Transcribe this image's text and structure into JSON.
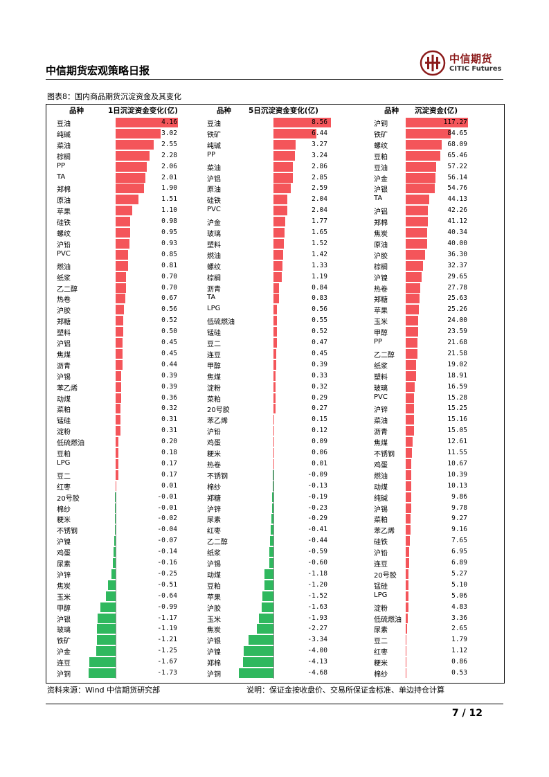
{
  "header": {
    "title": "中信期货宏观策略日报"
  },
  "logo": {
    "cn": "中信期货",
    "en": "CITIC Futures"
  },
  "figure": {
    "title": "图表8：国内商品期货沉淀资金及其变化"
  },
  "colors": {
    "positive": "#f4555a",
    "negative": "#2fb85e"
  },
  "chart_data": [
    {
      "type": "bar",
      "name_header": "品种",
      "value_header": "1日沉淀资金变化(亿)",
      "categories": [
        "豆油",
        "纯碱",
        "菜油",
        "棕榈",
        "PP",
        "TA",
        "郑棉",
        "原油",
        "苹果",
        "硅铁",
        "螺纹",
        "沪铅",
        "PVC",
        "燃油",
        "纸浆",
        "乙二醇",
        "热卷",
        "沪胶",
        "郑糖",
        "塑料",
        "沪铝",
        "焦煤",
        "沥青",
        "沪锡",
        "苯乙烯",
        "动煤",
        "菜粕",
        "锰硅",
        "淀粉",
        "低硫燃油",
        "豆粕",
        "LPG",
        "豆二",
        "红枣",
        "20号胶",
        "棉纱",
        "粳米",
        "不锈钢",
        "沪镍",
        "鸡蛋",
        "尿素",
        "沪锌",
        "焦炭",
        "玉米",
        "甲醇",
        "沪银",
        "玻璃",
        "铁矿",
        "沪金",
        "连豆",
        "沪铜"
      ],
      "values": [
        4.16,
        3.02,
        2.55,
        2.28,
        2.06,
        2.01,
        1.9,
        1.51,
        1.1,
        0.98,
        0.95,
        0.93,
        0.85,
        0.81,
        0.7,
        0.7,
        0.67,
        0.56,
        0.52,
        0.5,
        0.45,
        0.45,
        0.44,
        0.39,
        0.39,
        0.36,
        0.32,
        0.31,
        0.31,
        0.2,
        0.18,
        0.17,
        0.17,
        0.01,
        -0.01,
        -0.01,
        -0.02,
        -0.04,
        -0.07,
        -0.14,
        -0.16,
        -0.25,
        -0.51,
        -0.64,
        -0.99,
        -1.17,
        -1.19,
        -1.21,
        -1.25,
        -1.67,
        -1.73
      ],
      "labels": [
        "4.16",
        "3.02",
        "2.55",
        "2.28",
        "2.06",
        "2.01",
        "1.90",
        "1.51",
        "1.10",
        "0.98",
        "0.95",
        "0.93",
        "0.85",
        "0.81",
        "0.70",
        "0.70",
        "0.67",
        "0.56",
        "0.52",
        "0.50",
        "0.45",
        "0.45",
        "0.44",
        "0.39",
        "0.39",
        "0.36",
        "0.32",
        "0.31",
        "0.31",
        "0.20",
        "0.18",
        "0.17",
        "0.17",
        "0.01",
        "-0.01",
        "-0.01",
        "-0.02",
        "-0.04",
        "-0.07",
        "-0.14",
        "-0.16",
        "-0.25",
        "-0.51",
        "-0.64",
        "-0.99",
        "-1.17",
        "-1.19",
        "-1.21",
        "-1.25",
        "-1.67",
        "-1.73"
      ],
      "xlim": [
        -1.73,
        4.16
      ]
    },
    {
      "type": "bar",
      "name_header": "品种",
      "value_header": "5日沉淀资金变化(亿)",
      "categories": [
        "豆油",
        "铁矿",
        "纯碱",
        "PP",
        "菜油",
        "沪铝",
        "原油",
        "硅铁",
        "PVC",
        "沪金",
        "玻璃",
        "塑料",
        "燃油",
        "螺纹",
        "棕榈",
        "沥青",
        "TA",
        "LPG",
        "低硫燃油",
        "锰硅",
        "豆二",
        "连豆",
        "甲醇",
        "焦煤",
        "淀粉",
        "菜粕",
        "20号胶",
        "苯乙烯",
        "沪铅",
        "鸡蛋",
        "粳米",
        "热卷",
        "不锈钢",
        "棉纱",
        "郑糖",
        "沪锌",
        "尿素",
        "红枣",
        "乙二醇",
        "纸浆",
        "沪锡",
        "动煤",
        "豆粕",
        "苹果",
        "沪胶",
        "玉米",
        "焦炭",
        "沪银",
        "沪镍",
        "郑棉",
        "沪铜"
      ],
      "values": [
        8.56,
        6.44,
        3.27,
        3.24,
        2.86,
        2.85,
        2.59,
        2.04,
        2.04,
        1.77,
        1.65,
        1.52,
        1.42,
        1.33,
        1.19,
        0.84,
        0.83,
        0.56,
        0.55,
        0.52,
        0.47,
        0.45,
        0.39,
        0.33,
        0.32,
        0.29,
        0.27,
        0.15,
        0.12,
        0.09,
        0.06,
        0.01,
        -0.09,
        -0.13,
        -0.19,
        -0.23,
        -0.29,
        -0.41,
        -0.44,
        -0.59,
        -0.6,
        -1.18,
        -1.2,
        -1.52,
        -1.63,
        -1.93,
        -2.27,
        -3.34,
        -4.0,
        -4.13,
        -4.68
      ],
      "labels": [
        "8.56",
        "6.44",
        "3.27",
        "3.24",
        "2.86",
        "2.85",
        "2.59",
        "2.04",
        "2.04",
        "1.77",
        "1.65",
        "1.52",
        "1.42",
        "1.33",
        "1.19",
        "0.84",
        "0.83",
        "0.56",
        "0.55",
        "0.52",
        "0.47",
        "0.45",
        "0.39",
        "0.33",
        "0.32",
        "0.29",
        "0.27",
        "0.15",
        "0.12",
        "0.09",
        "0.06",
        "0.01",
        "-0.09",
        "-0.13",
        "-0.19",
        "-0.23",
        "-0.29",
        "-0.41",
        "-0.44",
        "-0.59",
        "-0.60",
        "-1.18",
        "-1.20",
        "-1.52",
        "-1.63",
        "-1.93",
        "-2.27",
        "-3.34",
        "-4.00",
        "-4.13",
        "-4.68"
      ],
      "xlim": [
        -4.68,
        8.56
      ]
    },
    {
      "type": "bar",
      "name_header": "品种",
      "value_header": "沉淀资金(亿)",
      "categories": [
        "沪铜",
        "铁矿",
        "螺纹",
        "豆粕",
        "豆油",
        "沪金",
        "沪银",
        "TA",
        "沪铝",
        "郑棉",
        "焦炭",
        "原油",
        "沪胶",
        "棕榈",
        "沪镍",
        "热卷",
        "郑糖",
        "苹果",
        "玉米",
        "甲醇",
        "PP",
        "乙二醇",
        "纸浆",
        "塑料",
        "玻璃",
        "PVC",
        "沪锌",
        "菜油",
        "沥青",
        "焦煤",
        "不锈钢",
        "鸡蛋",
        "燃油",
        "动煤",
        "纯碱",
        "沪锡",
        "菜粕",
        "苯乙烯",
        "硅铁",
        "沪铅",
        "连豆",
        "20号胶",
        "锰硅",
        "LPG",
        "淀粉",
        "低硫燃油",
        "尿素",
        "豆二",
        "红枣",
        "粳米",
        "棉纱"
      ],
      "values": [
        117.27,
        84.65,
        68.09,
        65.46,
        57.22,
        56.14,
        54.76,
        44.13,
        42.26,
        41.12,
        40.34,
        40.0,
        36.3,
        32.37,
        29.65,
        27.78,
        25.63,
        25.26,
        24.0,
        23.59,
        21.68,
        21.58,
        19.02,
        18.91,
        16.59,
        15.28,
        15.25,
        15.16,
        15.05,
        12.61,
        11.55,
        10.67,
        10.39,
        10.13,
        9.86,
        9.78,
        9.27,
        9.16,
        7.65,
        6.95,
        6.89,
        5.27,
        5.1,
        5.06,
        4.83,
        3.36,
        2.65,
        1.79,
        1.12,
        0.86,
        0.53
      ],
      "labels": [
        "117.27",
        "84.65",
        "68.09",
        "65.46",
        "57.22",
        "56.14",
        "54.76",
        "44.13",
        "42.26",
        "41.12",
        "40.34",
        "40.00",
        "36.30",
        "32.37",
        "29.65",
        "27.78",
        "25.63",
        "25.26",
        "24.00",
        "23.59",
        "21.68",
        "21.58",
        "19.02",
        "18.91",
        "16.59",
        "15.28",
        "15.25",
        "15.16",
        "15.05",
        "12.61",
        "11.55",
        "10.67",
        "10.39",
        "10.13",
        "9.86",
        "9.78",
        "9.27",
        "9.16",
        "7.65",
        "6.95",
        "6.89",
        "5.27",
        "5.10",
        "5.06",
        "4.83",
        "3.36",
        "2.65",
        "1.79",
        "1.12",
        "0.86",
        "0.53"
      ],
      "xlim": [
        0,
        117.27
      ]
    }
  ],
  "footer": {
    "source": "资料来源：Wind 中信期货研究部",
    "note": "说明：保证金按收盘价、交易所保证金标准、单边持仓计算",
    "page": "7 / 12"
  }
}
